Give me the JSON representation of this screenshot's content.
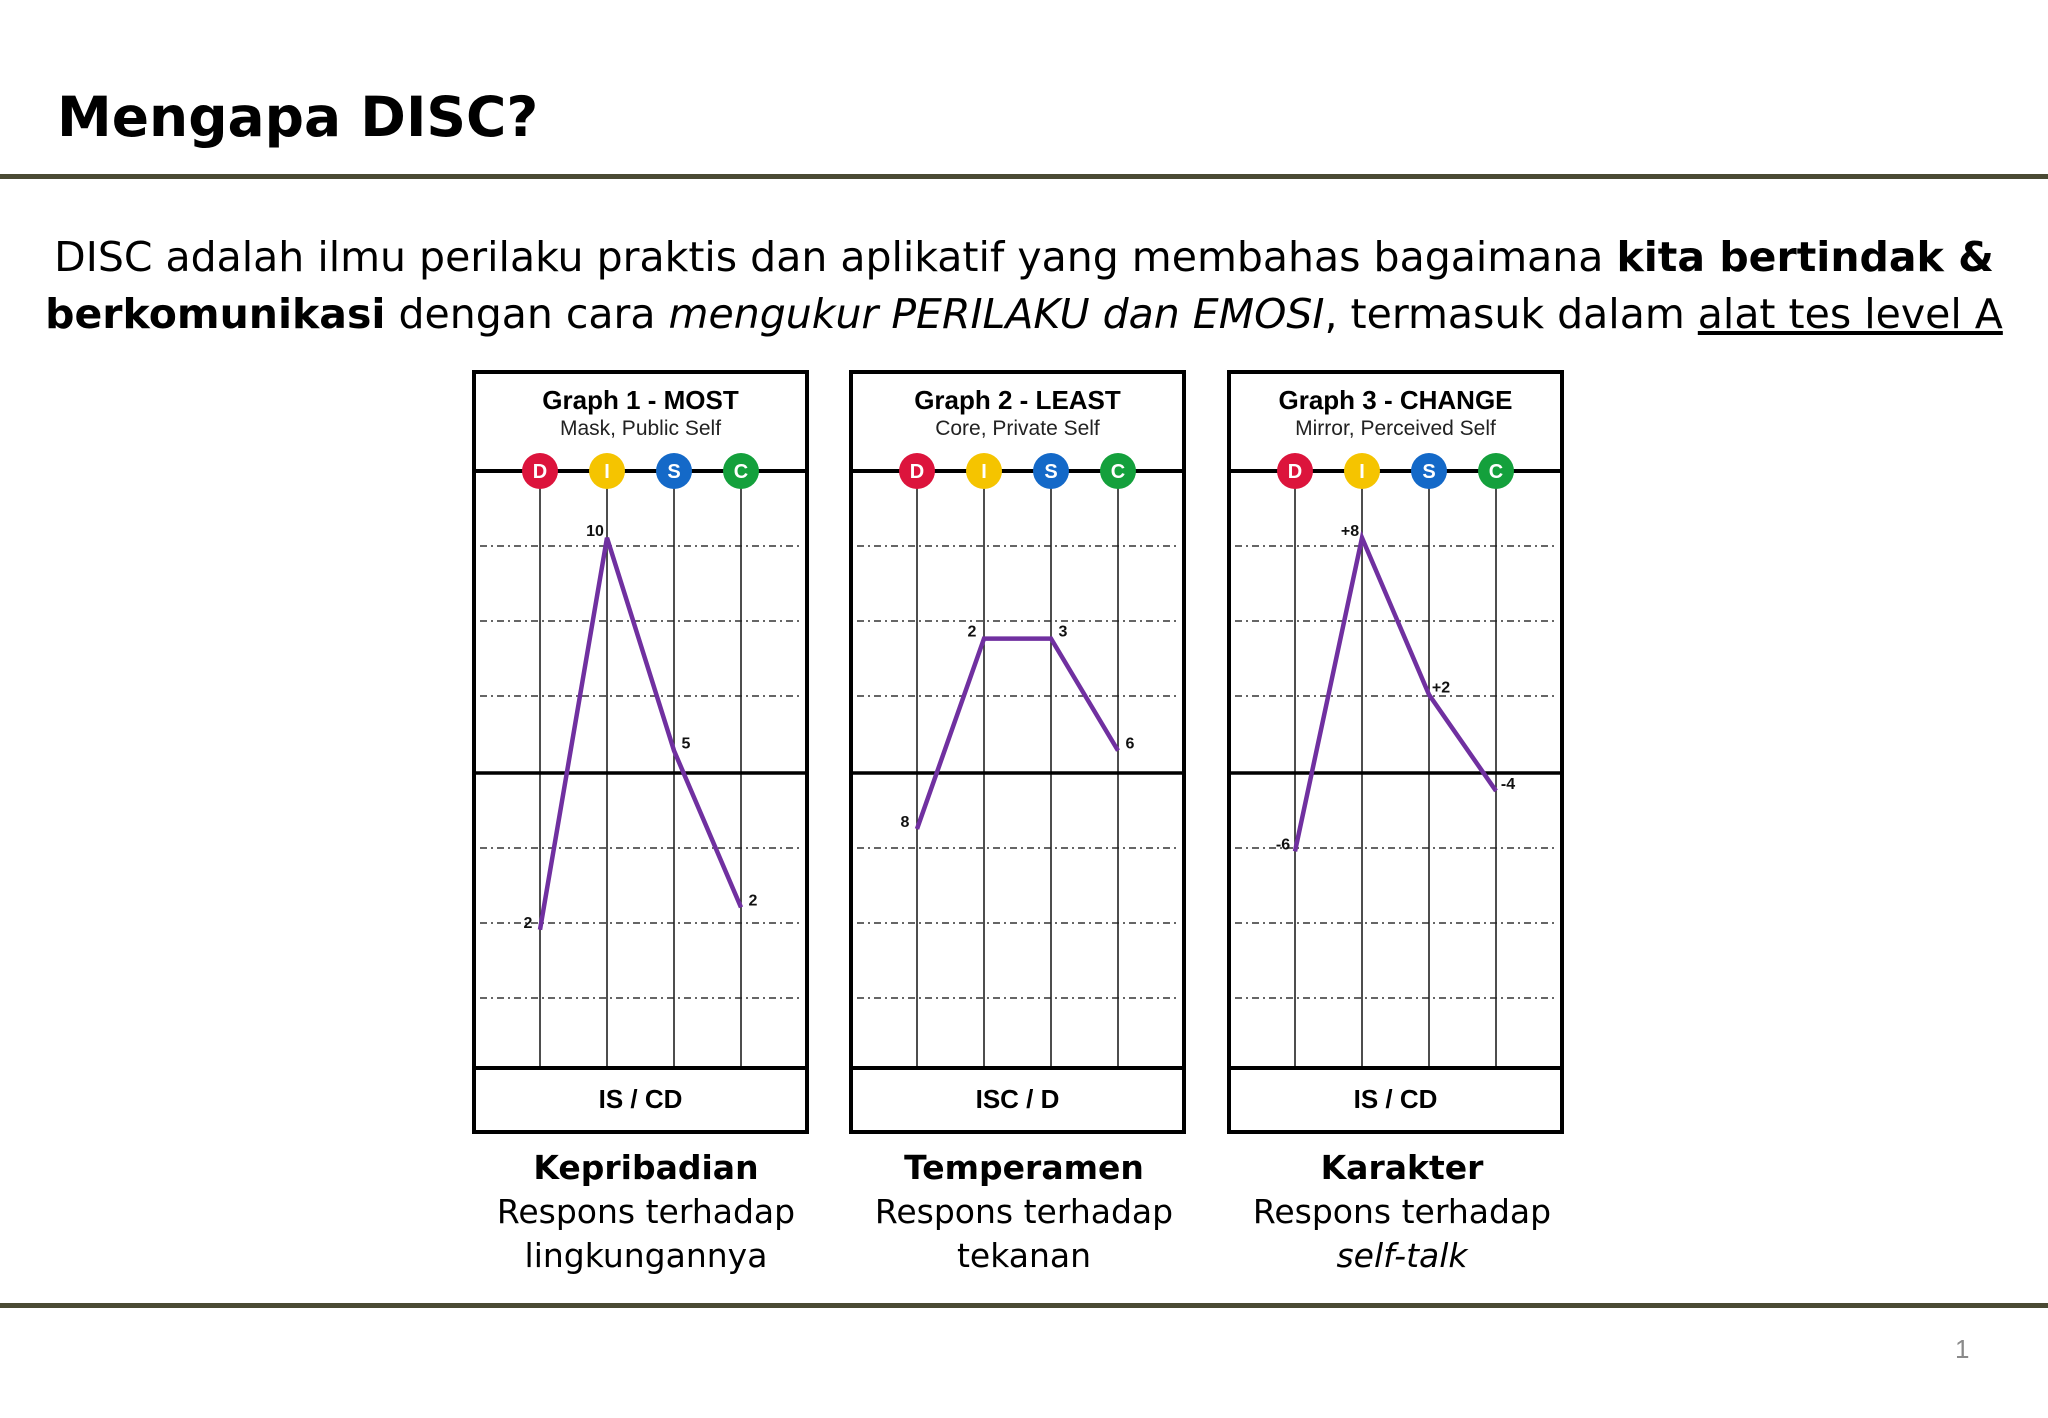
{
  "slide": {
    "title": "Mengapa DISC?",
    "intro": {
      "line1_a": "DISC adalah ilmu perilaku praktis dan aplikatif yang membahas bagaimana ",
      "line1_b": "kita bertindak &",
      "line2_a": "berkomunikasi",
      "line2_b": " dengan cara ",
      "line2_c": "mengukur PERILAKU dan EMOSI",
      "line2_d": ", termasuk dalam ",
      "line2_e": "alat tes level A"
    },
    "page_number": "1"
  },
  "colors": {
    "D": "#dc143c",
    "I": "#f5c400",
    "S": "#1469c8",
    "C": "#14a03c",
    "line": "#7030a0",
    "rule": "#4a4a34"
  },
  "chart_data": [
    {
      "type": "line",
      "title": "Graph 1 - MOST",
      "subtitle": "Mask, Public Self",
      "categories": [
        "D",
        "I",
        "S",
        "C"
      ],
      "levels": [
        -0.7,
        1.05,
        0.1,
        -0.6
      ],
      "labels": [
        "2",
        "10",
        "5",
        "2"
      ],
      "pattern": "IS / CD",
      "caption": {
        "heading": "Kepribadian",
        "line1": "Respons terhadap",
        "line2": "lingkungannya",
        "line2_italic": false
      }
    },
    {
      "type": "line",
      "title": "Graph 2 - LEAST",
      "subtitle": "Core, Private Self",
      "categories": [
        "D",
        "I",
        "S",
        "C"
      ],
      "levels": [
        -0.25,
        0.6,
        0.6,
        0.1
      ],
      "labels": [
        "8",
        "2",
        "3",
        "6"
      ],
      "pattern": "ISC / D",
      "caption": {
        "heading": "Temperamen",
        "line1": "Respons terhadap",
        "line2": "tekanan",
        "line2_italic": false
      }
    },
    {
      "type": "line",
      "title": "Graph 3 - CHANGE",
      "subtitle": "Mirror, Perceived Self",
      "categories": [
        "D",
        "I",
        "S",
        "C"
      ],
      "levels": [
        -0.35,
        1.05,
        0.35,
        -0.08
      ],
      "labels": [
        "-6",
        "+8",
        "+2",
        "-4"
      ],
      "pattern": "IS / CD",
      "caption": {
        "heading": "Karakter",
        "line1": "Respons terhadap",
        "line2": "self-talk",
        "line2_italic": true
      }
    }
  ]
}
